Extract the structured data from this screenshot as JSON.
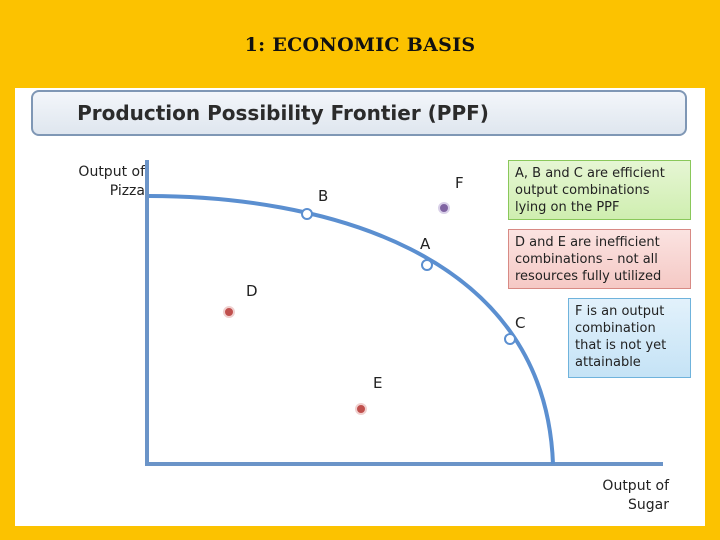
{
  "slide": {
    "title": "1: ECONOMIC BASIS"
  },
  "diagram": {
    "banner": "Production Possibility Frontier (PPF)",
    "y_axis_label_line1": "Output of",
    "y_axis_label_line2": "Pizza",
    "x_axis_label_line1": "Output of",
    "x_axis_label_line2": "Sugar",
    "points": {
      "A": "A",
      "B": "B",
      "C": "C",
      "D": "D",
      "E": "E",
      "F": "F"
    },
    "callouts": {
      "efficient": [
        "A, B and C are efficient",
        "output combinations",
        "lying on the PPF"
      ],
      "inefficient": [
        "D and E are inefficient",
        "combinations – not all",
        "resources fully utilized"
      ],
      "unattainable": [
        "F is an output",
        "combination",
        "that is not yet",
        "attainable"
      ]
    },
    "colors": {
      "curve": "#5b8fd0",
      "axes": "#6b94c8",
      "inefficient_point": "#c0504d",
      "unattainable_point": "#8064a2"
    }
  }
}
